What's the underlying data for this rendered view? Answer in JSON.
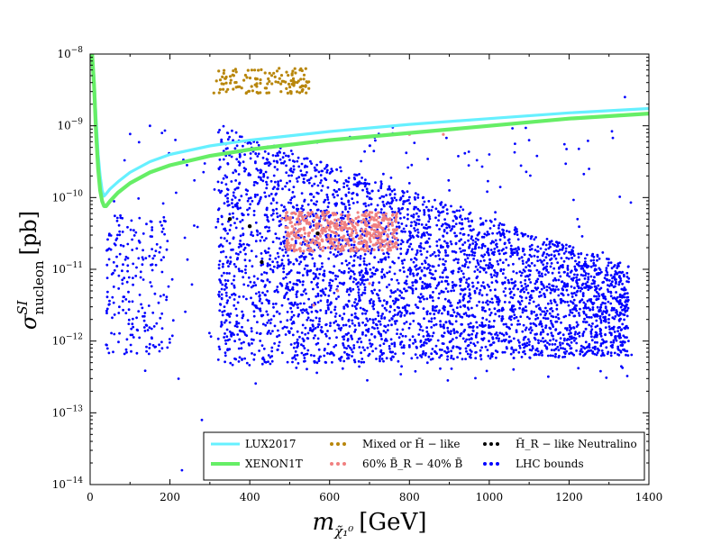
{
  "chart_data": {
    "type": "scatter",
    "title": "",
    "xlabel": "m_{χ̃₁⁰} [GeV]",
    "xlabel_main": "m",
    "xlabel_sub": "χ̃₁⁰",
    "xlabel_unit": "[GeV]",
    "ylabel": "σ^{SI}_{nucleon} [pb]",
    "ylabel_main": "σ",
    "ylabel_sup": "SI",
    "ylabel_sub": "nucleon",
    "ylabel_unit": "[pb]",
    "xlim": [
      0,
      1400
    ],
    "ylim_log10": [
      -14,
      -8
    ],
    "yscale": "log",
    "grid": false,
    "legend_position": "bottom-right",
    "x_ticks": [
      0,
      200,
      400,
      600,
      800,
      1000,
      1200,
      1400
    ],
    "x_tick_labels": [
      "0",
      "200",
      "400",
      "600",
      "800",
      "1000",
      "1200",
      "1400"
    ],
    "y_ticks_log10": [
      -14,
      -13,
      -12,
      -11,
      -10,
      -9,
      -8
    ],
    "y_tick_labels": [
      {
        "base": "10",
        "exp": "−14"
      },
      {
        "base": "10",
        "exp": "−13"
      },
      {
        "base": "10",
        "exp": "−12"
      },
      {
        "base": "10",
        "exp": "−11"
      },
      {
        "base": "10",
        "exp": "−10"
      },
      {
        "base": "10",
        "exp": "−9"
      },
      {
        "base": "10",
        "exp": "−8"
      }
    ],
    "curves": [
      {
        "name": "LUX2017",
        "color": "#66f0ff",
        "points": [
          [
            5,
            -8.0
          ],
          [
            10,
            -8.35
          ],
          [
            15,
            -8.9
          ],
          [
            20,
            -9.4
          ],
          [
            25,
            -9.7
          ],
          [
            30,
            -9.9
          ],
          [
            35,
            -9.98
          ],
          [
            40,
            -9.95
          ],
          [
            50,
            -9.88
          ],
          [
            70,
            -9.78
          ],
          [
            100,
            -9.65
          ],
          [
            150,
            -9.5
          ],
          [
            200,
            -9.4
          ],
          [
            300,
            -9.28
          ],
          [
            400,
            -9.2
          ],
          [
            600,
            -9.08
          ],
          [
            800,
            -8.98
          ],
          [
            1000,
            -8.9
          ],
          [
            1200,
            -8.82
          ],
          [
            1400,
            -8.76
          ]
        ]
      },
      {
        "name": "XENON1T",
        "color": "#66ee66",
        "points": [
          [
            5,
            -8.0
          ],
          [
            10,
            -8.45
          ],
          [
            15,
            -9.1
          ],
          [
            20,
            -9.6
          ],
          [
            25,
            -9.9
          ],
          [
            30,
            -10.05
          ],
          [
            35,
            -10.12
          ],
          [
            40,
            -10.12
          ],
          [
            50,
            -10.05
          ],
          [
            70,
            -9.93
          ],
          [
            100,
            -9.8
          ],
          [
            150,
            -9.65
          ],
          [
            200,
            -9.55
          ],
          [
            300,
            -9.42
          ],
          [
            400,
            -9.33
          ],
          [
            600,
            -9.2
          ],
          [
            800,
            -9.1
          ],
          [
            1000,
            -9.0
          ],
          [
            1200,
            -8.9
          ],
          [
            1400,
            -8.83
          ]
        ]
      }
    ],
    "series": [
      {
        "name": "LHC bounds",
        "color": "#0000ff",
        "regions": [
          {
            "x": [
              320,
              1350
            ],
            "y_log10_lower": [
              -12.35,
              -12.2
            ],
            "y_log10_upper": [
              -9.0,
              -10.95
            ],
            "count": 3800
          },
          {
            "x": [
              40,
              200
            ],
            "y_log10": [
              -12.2,
              -10.2
            ],
            "count": 200
          }
        ],
        "outliers": [
          [
            230,
            -13.8
          ],
          [
            280,
            -13.1
          ],
          [
            150,
            -9.0
          ],
          [
            180,
            -9.1
          ],
          [
            1100,
            -9.2
          ],
          [
            1250,
            -9.6
          ],
          [
            900,
            -9.9
          ],
          [
            1340,
            -8.6
          ],
          [
            1000,
            -9.4
          ],
          [
            800,
            -9.8
          ]
        ],
        "outlier_count": 280
      },
      {
        "name": "60% B̃_R − 40% B̃",
        "color": "#f08080",
        "regions": [
          {
            "x": [
              490,
              770
            ],
            "y_log10": [
              -10.75,
              -10.2
            ],
            "count": 450
          }
        ],
        "outliers": [
          [
            800,
            -9.12
          ],
          [
            885,
            -9.12
          ],
          [
            480,
            -10.3
          ],
          [
            560,
            -11.5
          ],
          [
            620,
            -11.3
          ],
          [
            700,
            -11.2
          ]
        ]
      },
      {
        "name": "Mixed or H̃ − like",
        "color": "#b8860b",
        "regions": [
          {
            "x": [
              310,
              550
            ],
            "y_log10": [
              -8.55,
              -8.2
            ],
            "count": 130
          }
        ]
      },
      {
        "name": "H̃_R − like Neutralino",
        "color": "#000000",
        "points": [
          [
            350,
            -10.3
          ],
          [
            400,
            -10.4
          ],
          [
            430,
            -10.9
          ],
          [
            570,
            -10.5
          ]
        ]
      }
    ],
    "legend": [
      {
        "label": "LUX2017",
        "color": "#66f0ff",
        "kind": "line"
      },
      {
        "label": "XENON1T",
        "color": "#66ee66",
        "kind": "line"
      },
      {
        "label": "Mixed or H̃ − like",
        "color": "#b8860b",
        "kind": "dots"
      },
      {
        "label": "60% B̃_R − 40% B̃",
        "color": "#f08080",
        "kind": "dots"
      },
      {
        "label": "H̃_R − like Neutralino",
        "color": "#000000",
        "kind": "dots"
      },
      {
        "label": "LHC bounds",
        "color": "#0000ff",
        "kind": "dots"
      }
    ]
  }
}
